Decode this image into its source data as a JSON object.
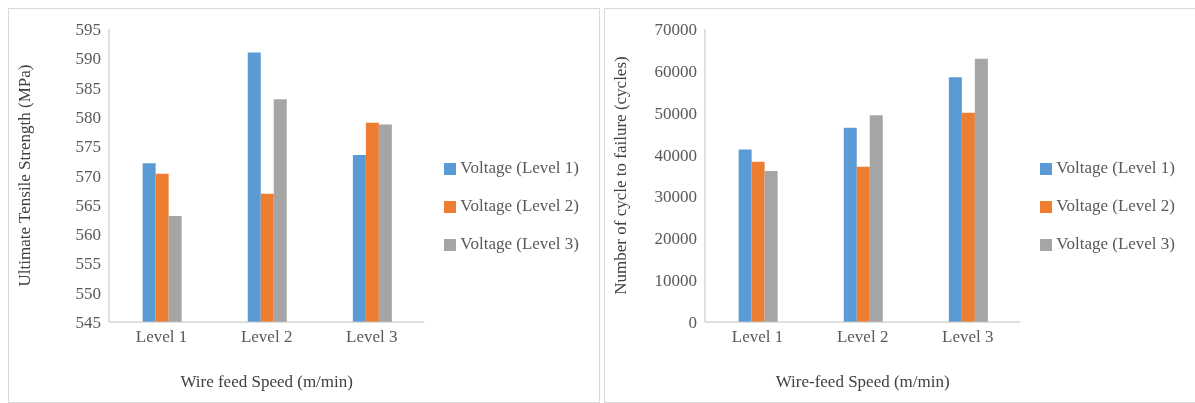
{
  "chart_data": [
    {
      "type": "bar",
      "xlabel": "Wire feed Speed (m/min)",
      "ylabel": "Ultimate Tensile Strength (MPa)",
      "categories": [
        "Level 1",
        "Level 2",
        "Level 3"
      ],
      "series": [
        {
          "name": "Voltage (Level 1)",
          "color": "#5b9bd5",
          "values": [
            572.1,
            591,
            573.5
          ]
        },
        {
          "name": "Voltage (Level 2)",
          "color": "#ed7d31",
          "values": [
            570.3,
            566.9,
            579
          ]
        },
        {
          "name": "Voltage (Level 3)",
          "color": "#a5a5a5",
          "values": [
            563.1,
            583,
            578.7
          ]
        }
      ],
      "ylim": [
        545,
        595
      ],
      "yticks": [
        545,
        550,
        555,
        560,
        565,
        570,
        575,
        580,
        585,
        590,
        595
      ],
      "grid": false,
      "legend": "right"
    },
    {
      "type": "bar",
      "xlabel": "Wire-feed Speed (m/min)",
      "ylabel": "Number of cycle to failure (cycles)",
      "categories": [
        "Level 1",
        "Level 2",
        "Level 3"
      ],
      "series": [
        {
          "name": "Voltage (Level 1)",
          "color": "#5b9bd5",
          "values": [
            41200,
            46400,
            58500
          ]
        },
        {
          "name": "Voltage (Level 2)",
          "color": "#ed7d31",
          "values": [
            38300,
            37100,
            50000
          ]
        },
        {
          "name": "Voltage (Level 3)",
          "color": "#a5a5a5",
          "values": [
            36100,
            49400,
            62900
          ]
        }
      ],
      "ylim": [
        0,
        70000
      ],
      "yticks": [
        0,
        10000,
        20000,
        30000,
        40000,
        50000,
        60000,
        70000
      ],
      "grid": false,
      "legend": "right"
    }
  ]
}
